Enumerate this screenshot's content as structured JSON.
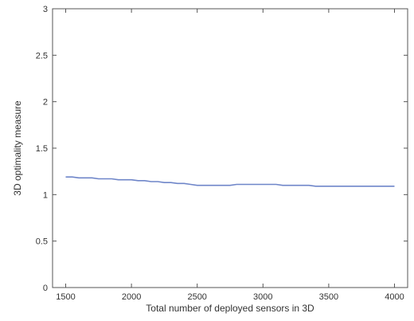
{
  "chart_data": {
    "type": "line",
    "title": "",
    "xlabel": "Total number of deployed sensors in 3D",
    "ylabel": "3D optimality measure",
    "xlim": [
      1400,
      4100
    ],
    "ylim": [
      0,
      3
    ],
    "xticks": [
      1500,
      2000,
      2500,
      3000,
      3500,
      4000
    ],
    "yticks": [
      0,
      0.5,
      1,
      1.5,
      2,
      2.5,
      3
    ],
    "xtick_labels": [
      "1500",
      "2000",
      "2500",
      "3000",
      "3500",
      "4000"
    ],
    "ytick_labels": [
      "0",
      "0.5",
      "1",
      "1.5",
      "2",
      "2.5",
      "3"
    ],
    "grid": false,
    "series": [
      {
        "color": "#6f86c9",
        "x": [
          1500,
          1550,
          1600,
          1650,
          1700,
          1750,
          1800,
          1850,
          1900,
          1950,
          2000,
          2050,
          2100,
          2150,
          2200,
          2250,
          2300,
          2350,
          2400,
          2450,
          2500,
          2550,
          2600,
          2650,
          2700,
          2750,
          2800,
          2850,
          2900,
          2950,
          3000,
          3050,
          3100,
          3150,
          3200,
          3250,
          3300,
          3350,
          3400,
          3450,
          3500,
          3550,
          3600,
          3650,
          3700,
          3750,
          3800,
          3850,
          3900,
          3950,
          4000
        ],
        "y": [
          1.19,
          1.19,
          1.18,
          1.18,
          1.18,
          1.17,
          1.17,
          1.17,
          1.16,
          1.16,
          1.16,
          1.15,
          1.15,
          1.14,
          1.14,
          1.13,
          1.13,
          1.12,
          1.12,
          1.11,
          1.1,
          1.1,
          1.1,
          1.1,
          1.1,
          1.1,
          1.11,
          1.11,
          1.11,
          1.11,
          1.11,
          1.11,
          1.11,
          1.1,
          1.1,
          1.1,
          1.1,
          1.1,
          1.09,
          1.09,
          1.09,
          1.09,
          1.09,
          1.09,
          1.09,
          1.09,
          1.09,
          1.09,
          1.09,
          1.09,
          1.09
        ]
      }
    ]
  }
}
